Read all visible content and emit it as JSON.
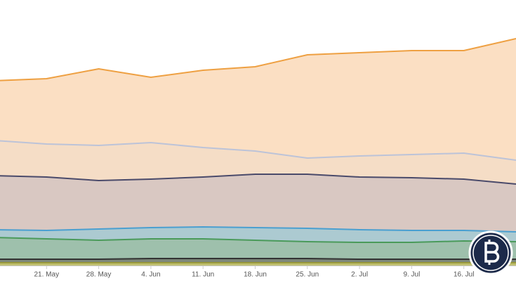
{
  "chart_data": {
    "type": "stacked-area",
    "categories": [
      null,
      "21. May",
      "28. May",
      "4. Jun",
      "11. Jun",
      "18. Jun",
      "25. Jun",
      "2. Jul",
      "9. Jul",
      "16. Jul",
      null
    ],
    "ylim": [
      0,
      378
    ],
    "series": [
      {
        "color": "#9a9a3a",
        "fill": "#b8b860",
        "values": [
          4,
          4,
          4,
          4,
          4,
          4,
          4,
          4,
          4,
          4,
          4
        ]
      },
      {
        "color": "#333333",
        "fill": "#6f7a6a",
        "values": [
          5,
          5,
          5,
          6,
          6,
          6,
          6,
          5,
          5,
          5,
          5
        ]
      },
      {
        "color": "#4a9a5a",
        "fill": "#93b9a3",
        "values": [
          31,
          29,
          27,
          28,
          28,
          26,
          24,
          24,
          24,
          26,
          25
        ]
      },
      {
        "color": "#4a9fd0",
        "fill": "#a3c4cc",
        "values": [
          11,
          12,
          16,
          16,
          17,
          18,
          19,
          18,
          17,
          15,
          14
        ]
      },
      {
        "color": "#4a4a6a",
        "fill": "#d5c2bb",
        "values": [
          77,
          76,
          69,
          69,
          71,
          76,
          77,
          75,
          75,
          73,
          68
        ]
      },
      {
        "color": "#bcc3d8",
        "fill": "#f4d9c0",
        "values": [
          50,
          47,
          50,
          52,
          42,
          33,
          23,
          30,
          33,
          37,
          34
        ]
      },
      {
        "color": "#eea042",
        "fill": "#fbdcbc",
        "values": [
          85,
          93,
          109,
          93,
          110,
          120,
          147,
          147,
          148,
          146,
          173
        ]
      }
    ]
  }
}
